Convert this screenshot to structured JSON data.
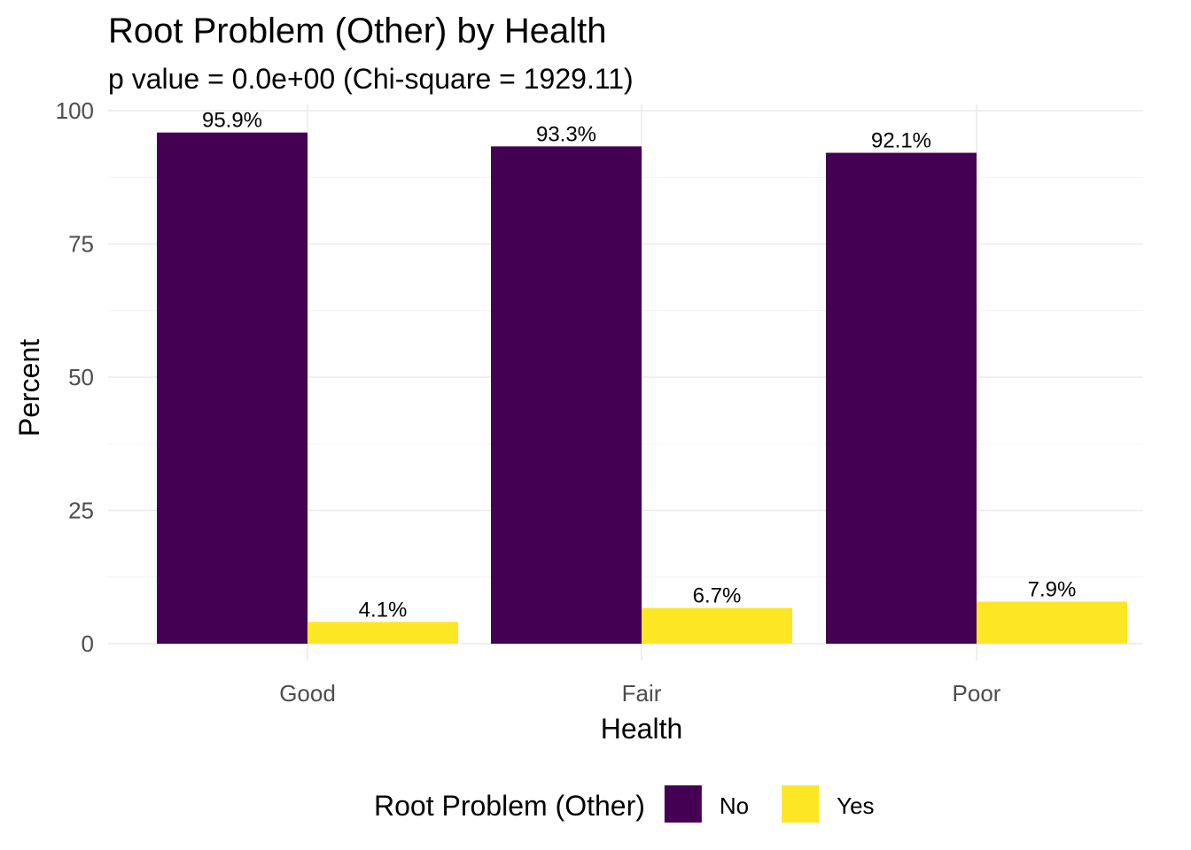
{
  "chart_data": {
    "type": "bar",
    "title": "Root Problem (Other) by Health",
    "subtitle": "p value = 0.0e+00 (Chi-square = 1929.11)",
    "xlabel": "Health",
    "ylabel": "Percent",
    "categories": [
      "Good",
      "Fair",
      "Poor"
    ],
    "series": [
      {
        "name": "No",
        "color": "#440154",
        "values": [
          95.9,
          93.3,
          92.1
        ],
        "labels": [
          "95.9%",
          "93.3%",
          "92.1%"
        ]
      },
      {
        "name": "Yes",
        "color": "#FDE725",
        "values": [
          4.1,
          6.7,
          7.9
        ],
        "labels": [
          "4.1%",
          "6.7%",
          "7.9%"
        ]
      }
    ],
    "ylim": [
      0,
      100
    ],
    "yticks": [
      0,
      25,
      50,
      75,
      100
    ],
    "grid": true,
    "legend": {
      "title": "Root Problem (Other)",
      "position": "bottom"
    }
  }
}
